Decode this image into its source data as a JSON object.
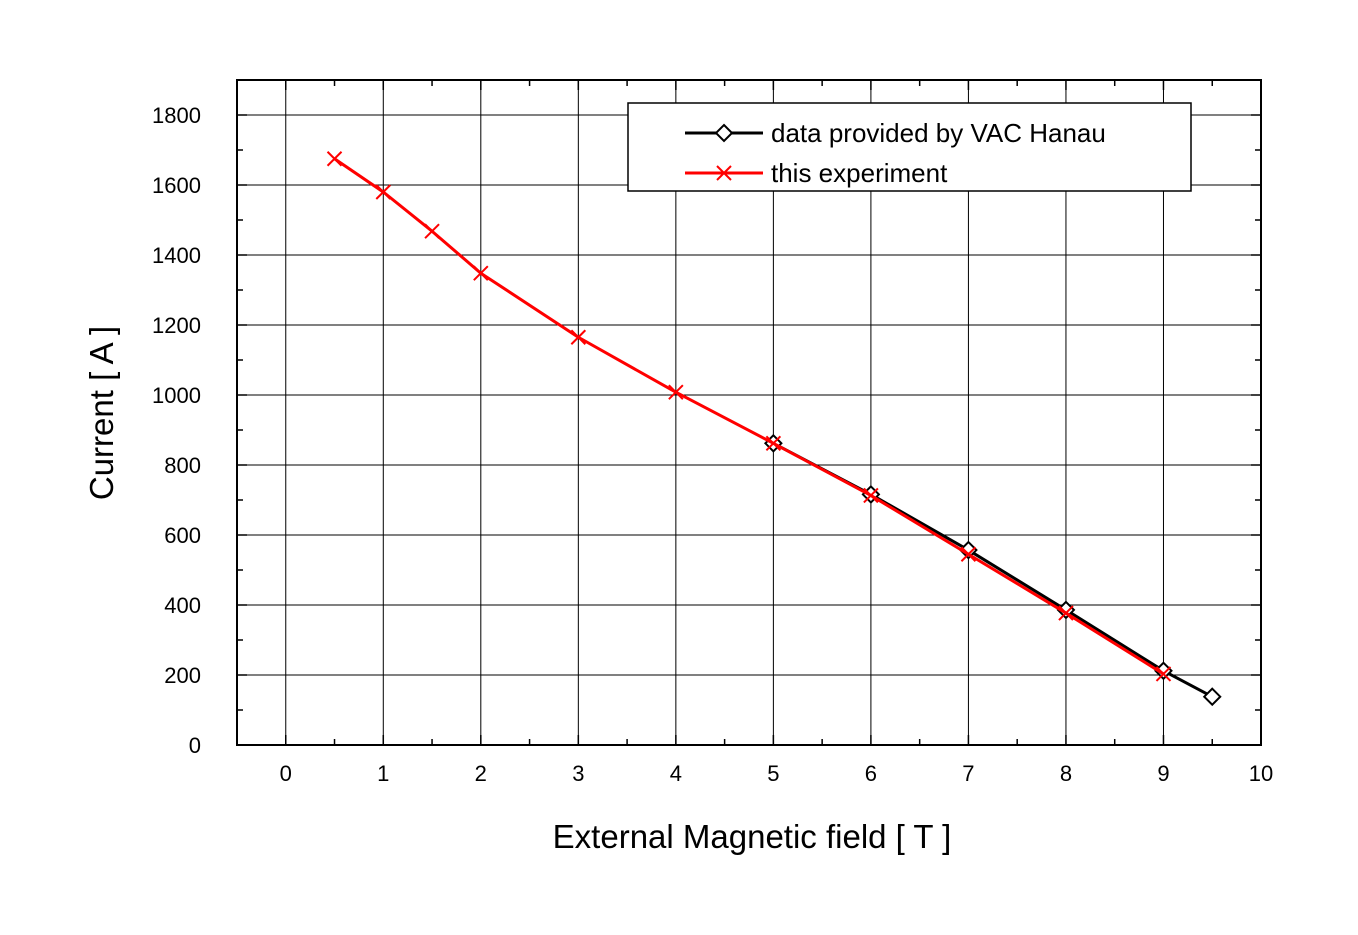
{
  "chart_data": {
    "type": "line",
    "title": "",
    "xlabel": "External Magnetic field [ T ]",
    "ylabel": "Current [ A ]",
    "xlim": [
      -0.5,
      10
    ],
    "ylim": [
      0,
      1900
    ],
    "x_ticks": [
      0,
      1,
      2,
      3,
      4,
      5,
      6,
      7,
      8,
      9,
      10
    ],
    "y_ticks": [
      0,
      200,
      400,
      600,
      800,
      1000,
      1200,
      1400,
      1600,
      1800
    ],
    "grid": true,
    "legend_position": "top-right",
    "series": [
      {
        "name": "data provided by VAC Hanau",
        "color": "#000000",
        "marker": "diamond",
        "x": [
          5,
          6,
          7,
          8,
          9,
          9.5
        ],
        "y": [
          862,
          716,
          557,
          386,
          212,
          138
        ]
      },
      {
        "name": "this experiment",
        "color": "#ff0000",
        "marker": "x",
        "x": [
          0.5,
          1,
          1.5,
          2,
          3,
          4,
          5,
          6,
          7,
          8,
          9
        ],
        "y": [
          1675,
          1580,
          1468,
          1348,
          1165,
          1008,
          862,
          713,
          545,
          377,
          203
        ]
      }
    ]
  }
}
